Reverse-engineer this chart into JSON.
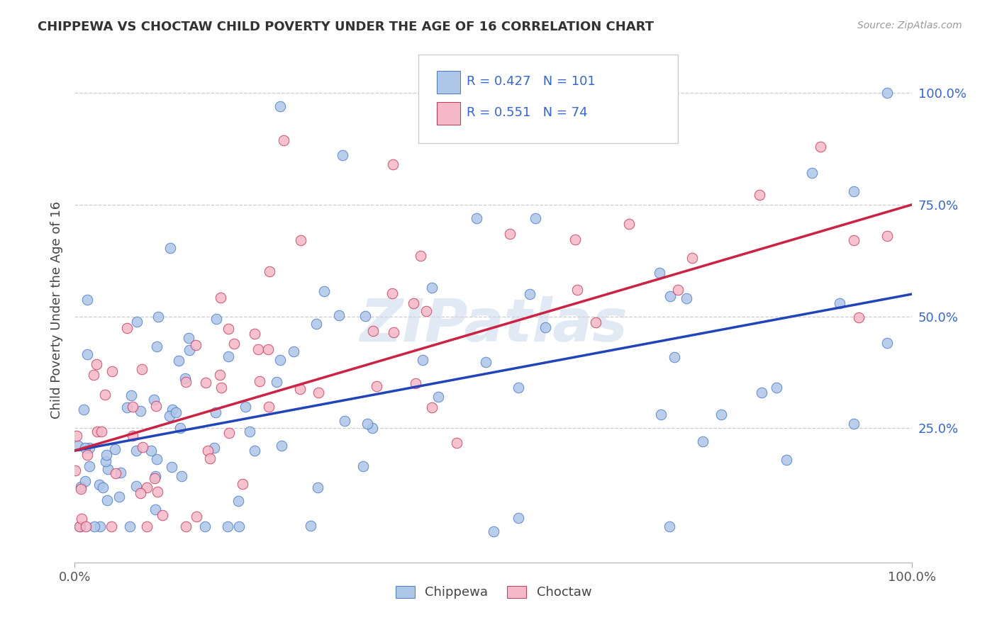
{
  "title": "CHIPPEWA VS CHOCTAW CHILD POVERTY UNDER THE AGE OF 16 CORRELATION CHART",
  "source": "Source: ZipAtlas.com",
  "ylabel": "Child Poverty Under the Age of 16",
  "chippewa_R": 0.427,
  "chippewa_N": 101,
  "choctaw_R": 0.551,
  "choctaw_N": 74,
  "chippewa_fill": "#aec6e8",
  "choctaw_fill": "#f5b8c8",
  "chippewa_edge": "#4477cc",
  "choctaw_edge": "#cc3355",
  "chippewa_line": "#2244bb",
  "choctaw_line": "#cc2244",
  "watermark": "ZIPatlas",
  "bg_color": "#ffffff",
  "grid_color": "#cccccc",
  "ytick_labels": [
    "25.0%",
    "50.0%",
    "75.0%",
    "100.0%"
  ],
  "ytick_values": [
    0.25,
    0.5,
    0.75,
    1.0
  ],
  "legend_color": "#3366dd",
  "chippewa_line_intercept": 0.2,
  "chippewa_line_slope": 0.35,
  "choctaw_line_intercept": 0.2,
  "choctaw_line_slope": 0.55
}
